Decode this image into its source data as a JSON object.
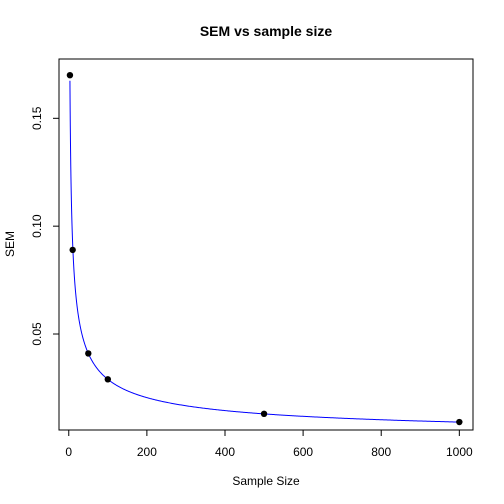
{
  "chart_data": {
    "type": "scatter",
    "title": "SEM vs sample size",
    "xlabel": "Sample Size",
    "ylabel": "SEM",
    "xlim": [
      -25,
      1035
    ],
    "ylim": [
      0.0055,
      0.1775
    ],
    "x_ticks": [
      0,
      200,
      400,
      600,
      800,
      1000
    ],
    "x_tick_labels": [
      "0",
      "200",
      "400",
      "600",
      "800",
      "1000"
    ],
    "y_ticks": [
      0.05,
      0.1,
      0.15
    ],
    "y_tick_labels": [
      "0.05",
      "0.10",
      "0.15"
    ],
    "grid": false,
    "points": {
      "x": [
        3,
        10,
        50,
        100,
        500,
        1000
      ],
      "y": [
        0.17,
        0.089,
        0.041,
        0.029,
        0.013,
        0.0092
      ],
      "color": "#000000"
    },
    "curve": {
      "formula": "0.29 / sqrt(n)",
      "coefficient": 0.29,
      "x_from": 3,
      "x_to": 1000,
      "color": "#0000ff"
    }
  }
}
